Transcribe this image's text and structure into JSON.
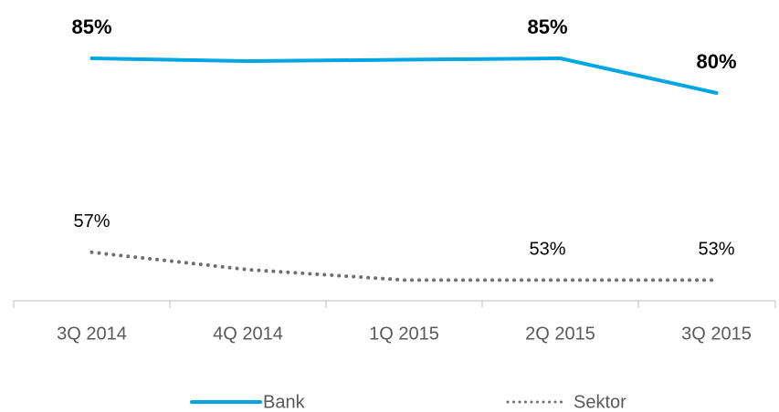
{
  "chart_data": {
    "type": "line",
    "categories": [
      "3Q 2014",
      "4Q 2014",
      "1Q 2015",
      "2Q 2015",
      "3Q 2015"
    ],
    "series": [
      {
        "name": "Bank",
        "color": "#00a6e2",
        "values": [
          85,
          84.6,
          84.8,
          85,
          80
        ],
        "value_labels": [
          "85%",
          null,
          null,
          "85%",
          "80%"
        ]
      },
      {
        "name": "Sektor",
        "color": "#6d6e71",
        "values": [
          57,
          54.5,
          53,
          53,
          53
        ],
        "value_labels": [
          "57%",
          null,
          null,
          "53%",
          "53%"
        ]
      }
    ],
    "ylim": [
      50,
      90
    ],
    "grid": false,
    "legend": "bottom"
  }
}
